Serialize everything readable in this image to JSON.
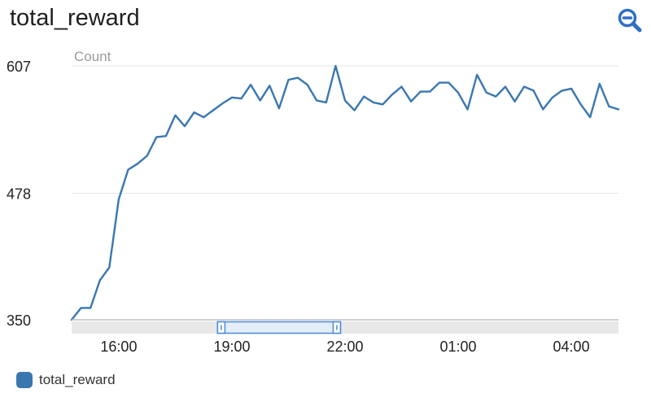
{
  "title": "total_reward",
  "zoom_icon": "magnifier-minus-icon",
  "colors": {
    "series": "#3a77b0",
    "grid": "#e6e6e6",
    "range_bar": "#e8e8e8",
    "selector": "#4a8ad6"
  },
  "chart_data": {
    "type": "line",
    "title": "total_reward",
    "ylabel": "Count",
    "xlabel": "",
    "ylim": [
      350,
      607
    ],
    "ytick_labels": [
      "607",
      "478",
      "350"
    ],
    "yticks": [
      607,
      478,
      350
    ],
    "xtick_labels": [
      "16:00",
      "19:00",
      "22:00",
      "01:00",
      "04:00"
    ],
    "xticks": [
      "16:00",
      "19:00",
      "22:00",
      "01:00",
      "04:00"
    ],
    "grid": true,
    "legend_position": "bottom-left",
    "series": [
      {
        "name": "total_reward",
        "points": [
          [
            "14:45",
            350
          ],
          [
            "15:00",
            362
          ],
          [
            "15:15",
            362
          ],
          [
            "15:30",
            390
          ],
          [
            "15:45",
            403
          ],
          [
            "16:00",
            472
          ],
          [
            "16:15",
            502
          ],
          [
            "16:30",
            508
          ],
          [
            "16:45",
            516
          ],
          [
            "17:00",
            535
          ],
          [
            "17:15",
            536
          ],
          [
            "17:30",
            557
          ],
          [
            "17:45",
            546
          ],
          [
            "18:00",
            560
          ],
          [
            "18:15",
            555
          ],
          [
            "18:30",
            562
          ],
          [
            "18:45",
            569
          ],
          [
            "19:00",
            575
          ],
          [
            "19:15",
            574
          ],
          [
            "19:30",
            588
          ],
          [
            "19:45",
            572
          ],
          [
            "20:00",
            587
          ],
          [
            "20:15",
            564
          ],
          [
            "20:30",
            593
          ],
          [
            "20:45",
            595
          ],
          [
            "21:00",
            588
          ],
          [
            "21:15",
            572
          ],
          [
            "21:30",
            570
          ],
          [
            "21:45",
            607
          ],
          [
            "22:00",
            572
          ],
          [
            "22:15",
            562
          ],
          [
            "22:30",
            576
          ],
          [
            "22:45",
            570
          ],
          [
            "23:00",
            568
          ],
          [
            "23:15",
            578
          ],
          [
            "23:30",
            586
          ],
          [
            "23:45",
            571
          ],
          [
            "00:00",
            581
          ],
          [
            "00:15",
            581
          ],
          [
            "00:30",
            590
          ],
          [
            "00:45",
            590
          ],
          [
            "01:00",
            580
          ],
          [
            "01:15",
            563
          ],
          [
            "01:30",
            598
          ],
          [
            "01:45",
            580
          ],
          [
            "02:00",
            576
          ],
          [
            "02:15",
            586
          ],
          [
            "02:30",
            571
          ],
          [
            "02:45",
            586
          ],
          [
            "03:00",
            582
          ],
          [
            "03:15",
            563
          ],
          [
            "03:30",
            575
          ],
          [
            "03:45",
            582
          ],
          [
            "04:00",
            584
          ],
          [
            "04:15",
            568
          ],
          [
            "04:30",
            555
          ],
          [
            "04:45",
            589
          ],
          [
            "05:00",
            566
          ],
          [
            "05:15",
            563
          ]
        ]
      }
    ],
    "range_selector": {
      "start": "18:45",
      "end": "21:45"
    }
  }
}
